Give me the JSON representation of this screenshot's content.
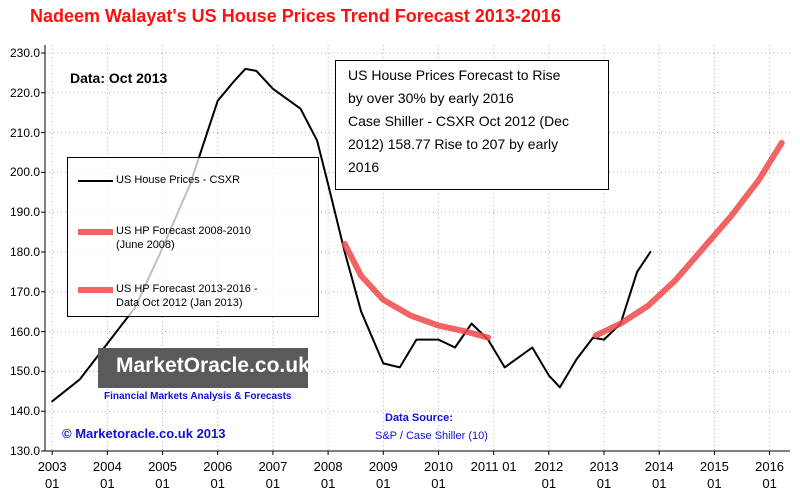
{
  "chart_data": {
    "type": "line",
    "title": "Nadeem Walayat's US House Prices Trend  Forecast 2013-2016",
    "annotations": {
      "data_date": "Data:  Oct 2013",
      "forecast_note": [
        "US House Prices Forecast to Rise",
        "by over 30% by early 2016",
        "Case Shiller - CSXR Oct 2012 (Dec",
        "2012) 158.77 Rise to 207 by early",
        "2016"
      ],
      "logo": "MarketOracle.co.uk",
      "logo_tagline": "Financial Markets Analysis & Forecasts",
      "copyright": "© Marketoracle.co.uk  2013",
      "source_title": "Data Source:",
      "source": "S&P / Case Shiller (10)"
    },
    "series": [
      {
        "name": "US House Prices - CSXR",
        "color": "#000000",
        "width": 2,
        "x": [
          2003.0,
          2003.5,
          2004.0,
          2004.5,
          2005.0,
          2005.5,
          2006.0,
          2006.3,
          2006.5,
          2006.7,
          2007.0,
          2007.5,
          2007.8,
          2008.0,
          2008.3,
          2008.6,
          2009.0,
          2009.3,
          2009.6,
          2010.0,
          2010.3,
          2010.6,
          2010.9,
          2011.2,
          2011.7,
          2012.0,
          2012.2,
          2012.5,
          2012.8,
          2013.0,
          2013.3,
          2013.6,
          2013.84
        ],
        "values": [
          142.5,
          148,
          157,
          166,
          181,
          197,
          218,
          223,
          226,
          225.5,
          221,
          216,
          208,
          197,
          180,
          165,
          152,
          151,
          158,
          158,
          156,
          162,
          158,
          151,
          156,
          149,
          146,
          153,
          158.5,
          158,
          162,
          175,
          180
        ]
      },
      {
        "name": "US HP Forecast 2008-2010\n(June 2008)",
        "color": "#f04848",
        "width": 6,
        "x": [
          2008.3,
          2008.6,
          2009.0,
          2009.5,
          2010.0,
          2010.5,
          2010.9
        ],
        "values": [
          182,
          174,
          168,
          164,
          161.5,
          160,
          158.5
        ]
      },
      {
        "name": "US HP Forecast 2013-2016  -\nData Oct 2012 (Jan 2013)",
        "color": "#f04848",
        "width": 6,
        "x": [
          2012.85,
          2013.3,
          2013.8,
          2014.3,
          2014.8,
          2015.3,
          2015.8,
          2016.22
        ],
        "values": [
          159,
          162,
          166.5,
          173,
          181,
          189,
          198,
          207.4
        ]
      }
    ],
    "xlim": [
      2002.87,
      2016.37
    ],
    "xticks": [
      {
        "value": 2003,
        "label": "2003\n01"
      },
      {
        "value": 2004,
        "label": "2004\n01"
      },
      {
        "value": 2005,
        "label": "2005\n01"
      },
      {
        "value": 2006,
        "label": "2006\n01"
      },
      {
        "value": 2007,
        "label": "2007\n01"
      },
      {
        "value": 2008,
        "label": "2008\n01"
      },
      {
        "value": 2009,
        "label": "2009\n01"
      },
      {
        "value": 2010,
        "label": "2010\n01"
      },
      {
        "value": 2011,
        "label": "2011 01"
      },
      {
        "value": 2012,
        "label": "2012\n01"
      },
      {
        "value": 2013,
        "label": "2013\n01"
      },
      {
        "value": 2014,
        "label": "2014\n01"
      },
      {
        "value": 2015,
        "label": "2015\n01"
      },
      {
        "value": 2016,
        "label": "2016\n01"
      }
    ],
    "ylim": [
      130,
      230
    ],
    "yticks": [
      {
        "value": 130,
        "label": "130.0"
      },
      {
        "value": 140,
        "label": "140.0"
      },
      {
        "value": 150,
        "label": "150.0"
      },
      {
        "value": 160,
        "label": "160.0"
      },
      {
        "value": 170,
        "label": "170.0"
      },
      {
        "value": 180,
        "label": "180.0"
      },
      {
        "value": 190,
        "label": "190.0"
      },
      {
        "value": 200,
        "label": "200.0"
      },
      {
        "value": 210,
        "label": "210.0"
      },
      {
        "value": 220,
        "label": "220.0"
      },
      {
        "value": 230,
        "label": "230.0"
      }
    ],
    "grid": true
  }
}
